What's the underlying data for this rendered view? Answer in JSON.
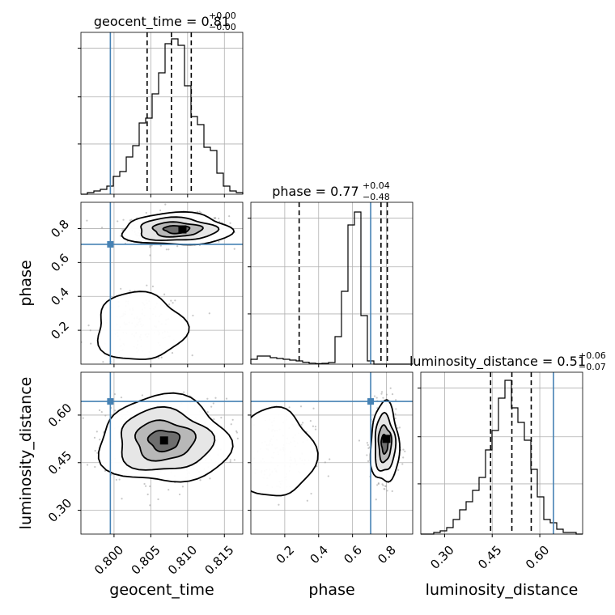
{
  "chart_data": {
    "type": "corner",
    "parameters": [
      "geocent_time",
      "phase",
      "luminosity_distance"
    ],
    "truths": {
      "geocent_time": 0.7995,
      "phase": 0.707,
      "luminosity_distance": 0.643
    },
    "titles": {
      "geocent_time": {
        "prefix": "geocent_time = ",
        "median": "0.81",
        "plus": "+0.00",
        "minus": "−0.00"
      },
      "phase": {
        "prefix": "phase = ",
        "median": "0.77",
        "plus": "+0.04",
        "minus": "−0.48"
      },
      "luminosity_distance": {
        "prefix": "luminosity_distance = ",
        "median": "0.51",
        "plus": "+0.06",
        "minus": "−0.07"
      }
    },
    "axis_labels": {
      "geocent_time": "geocent_time",
      "phase": "phase",
      "luminosity_distance": "luminosity_distance"
    },
    "ticks": {
      "geocent_time": [
        "0.800",
        "0.805",
        "0.810",
        "0.815"
      ],
      "phase": [
        "0.2",
        "0.4",
        "0.6",
        "0.8"
      ],
      "luminosity_distance": [
        "0.30",
        "0.45",
        "0.60"
      ]
    },
    "ranges": {
      "geocent_time": [
        0.7955,
        0.8175
      ],
      "phase": [
        0.0,
        0.955
      ],
      "luminosity_distance": [
        0.225,
        0.735
      ]
    },
    "quantiles": {
      "geocent_time": [
        0.8045,
        0.8078,
        0.8105
      ],
      "phase": [
        0.285,
        0.768,
        0.805
      ],
      "luminosity_distance": [
        0.445,
        0.512,
        0.573
      ]
    },
    "histograms": {
      "geocent_time": {
        "edges": [
          0.7955,
          0.8175
        ],
        "counts": [
          0,
          0.01,
          0.02,
          0.03,
          0.05,
          0.11,
          0.14,
          0.23,
          0.3,
          0.44,
          0.47,
          0.62,
          0.75,
          0.93,
          0.96,
          0.92,
          0.67,
          0.48,
          0.43,
          0.29,
          0.27,
          0.13,
          0.05,
          0.02,
          0.01
        ]
      },
      "phase": {
        "edges": [
          0.0,
          0.955
        ],
        "counts": [
          0.03,
          0.05,
          0.05,
          0.04,
          0.035,
          0.03,
          0.025,
          0.02,
          0.012,
          0.006,
          0.003,
          0.005,
          0.01,
          0.17,
          0.45,
          0.86,
          0.94,
          0.3,
          0.02,
          0,
          0,
          0,
          0,
          0,
          0
        ]
      },
      "luminosity_distance": {
        "edges": [
          0.225,
          0.735
        ],
        "counts": [
          0,
          0,
          0.01,
          0.02,
          0.04,
          0.09,
          0.15,
          0.2,
          0.27,
          0.35,
          0.52,
          0.64,
          0.84,
          0.95,
          0.78,
          0.69,
          0.58,
          0.4,
          0.23,
          0.09,
          0.07,
          0.03,
          0.01,
          0.01,
          0
        ]
      }
    },
    "samples": {
      "phase_vs_geocent_time": [
        {
          "x": 0.8085,
          "y": 0.795,
          "sx": 0.0035,
          "sy": 0.045,
          "n": 380
        },
        {
          "x": 0.8035,
          "y": 0.22,
          "sx": 0.003,
          "sy": 0.1,
          "n": 170
        }
      ],
      "luminosity_distance_vs_geocent_time": [
        {
          "x": 0.8068,
          "y": 0.52,
          "sx": 0.0042,
          "sy": 0.065,
          "n": 520
        }
      ],
      "luminosity_distance_vs_phase": [
        {
          "x": 0.79,
          "y": 0.51,
          "sx": 0.04,
          "sy": 0.06,
          "n": 340
        },
        {
          "x": 0.15,
          "y": 0.48,
          "sx": 0.11,
          "sy": 0.07,
          "n": 170
        }
      ]
    },
    "density_peaks": {
      "phase_vs_geocent_time": [
        {
          "x": 0.8093,
          "y": 0.795
        }
      ],
      "luminosity_distance_vs_geocent_time": [
        {
          "x": 0.8068,
          "y": 0.52
        }
      ],
      "luminosity_distance_vs_phase": [
        {
          "x": 0.8,
          "y": 0.525
        }
      ]
    },
    "grid": true,
    "colors": {
      "truth": "#4682b4",
      "contour": "#000000",
      "hist": "#000000",
      "grid": "#b0b0b0",
      "samples": "#9a9a9a"
    }
  }
}
